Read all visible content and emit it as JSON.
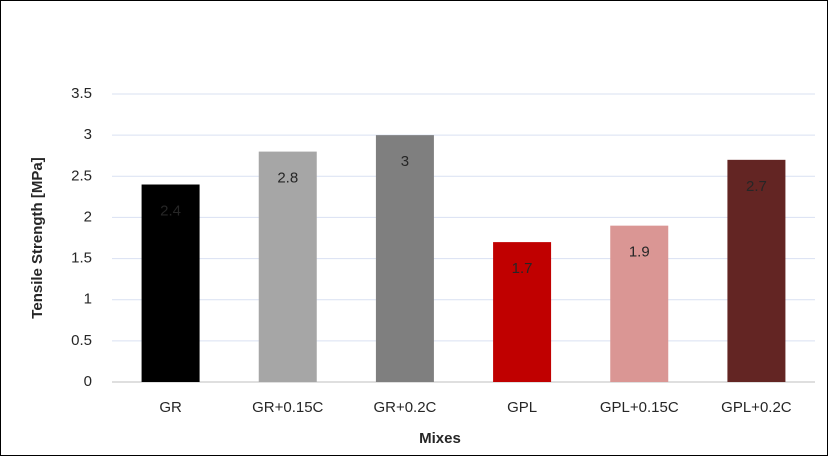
{
  "chart_data": {
    "type": "bar",
    "categories": [
      "GR",
      "GR+0.15C",
      "GR+0.2C",
      "GPL",
      "GPL+0.15C",
      "GPL+0.2C"
    ],
    "values": [
      2.4,
      2.8,
      3,
      1.7,
      1.9,
      2.7
    ],
    "colors": [
      "#000000",
      "#a6a6a6",
      "#7f7f7f",
      "#c00000",
      "#da9694",
      "#632523"
    ],
    "xlabel": "Mixes",
    "ylabel": "Tensile Strength [MPa]",
    "ylim": [
      0,
      3.5
    ],
    "yticks": [
      0,
      0.5,
      1,
      1.5,
      2,
      2.5,
      3,
      3.5
    ],
    "grid": true
  }
}
